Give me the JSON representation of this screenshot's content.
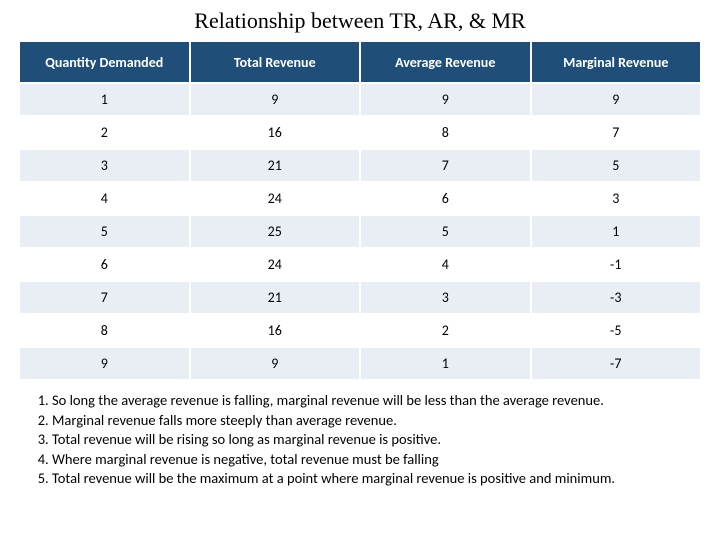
{
  "title": "Relationship between TR, AR, & MR",
  "table": {
    "header_bg": "#1f4e79",
    "header_fg": "#ffffff",
    "row_alt_bg": "#e9edf4",
    "row_plain_bg": "#ffffff",
    "columns": [
      "Quantity Demanded",
      "Total Revenue",
      "Average Revenue",
      "Marginal Revenue"
    ],
    "rows": [
      [
        "1",
        "9",
        "9",
        "9"
      ],
      [
        "2",
        "16",
        "8",
        "7"
      ],
      [
        "3",
        "21",
        "7",
        "5"
      ],
      [
        "4",
        "24",
        "6",
        "3"
      ],
      [
        "5",
        "25",
        "5",
        "1"
      ],
      [
        "6",
        "24",
        "4",
        "-1"
      ],
      [
        "7",
        "21",
        "3",
        "-3"
      ],
      [
        "8",
        "16",
        "2",
        "-5"
      ],
      [
        "9",
        "9",
        "1",
        "-7"
      ]
    ]
  },
  "notes": [
    "So long the average revenue is falling, marginal revenue will be less than the average revenue.",
    "Marginal revenue falls more steeply than average revenue.",
    "Total revenue will be rising so long as marginal revenue is positive.",
    "Where marginal revenue is negative, total revenue must be falling",
    "Total revenue will be the maximum at a point where marginal revenue is positive and minimum."
  ]
}
